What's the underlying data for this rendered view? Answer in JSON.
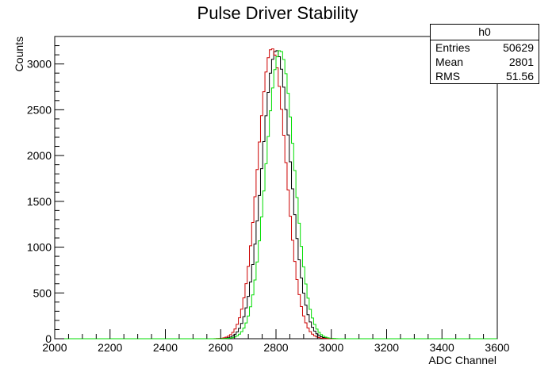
{
  "chart_data": {
    "type": "histogram",
    "title": "Pulse Driver Stability",
    "xlabel": "ADC Channel",
    "ylabel": "Counts",
    "xlim": [
      2000,
      3600
    ],
    "ylim": [
      0,
      3300
    ],
    "x_ticks": [
      2000,
      2200,
      2400,
      2600,
      2800,
      3000,
      3200,
      3400,
      3600
    ],
    "y_ticks": [
      0,
      500,
      1000,
      1500,
      2000,
      2500,
      3000
    ],
    "grid": false,
    "series": [
      {
        "color": "#000000",
        "mean": 2801,
        "rms": 51.56,
        "peak": 3150
      },
      {
        "color": "#cc0000",
        "mean": 2785,
        "rms": 51.0,
        "peak": 3170
      },
      {
        "color": "#00dd00",
        "mean": 2815,
        "rms": 51.0,
        "peak": 3150
      }
    ],
    "stats_box": {
      "name": "h0",
      "entries_label": "Entries",
      "entries": "50629",
      "mean_label": "Mean",
      "mean": "2801",
      "rms_label": "RMS",
      "rms": "51.56"
    }
  }
}
